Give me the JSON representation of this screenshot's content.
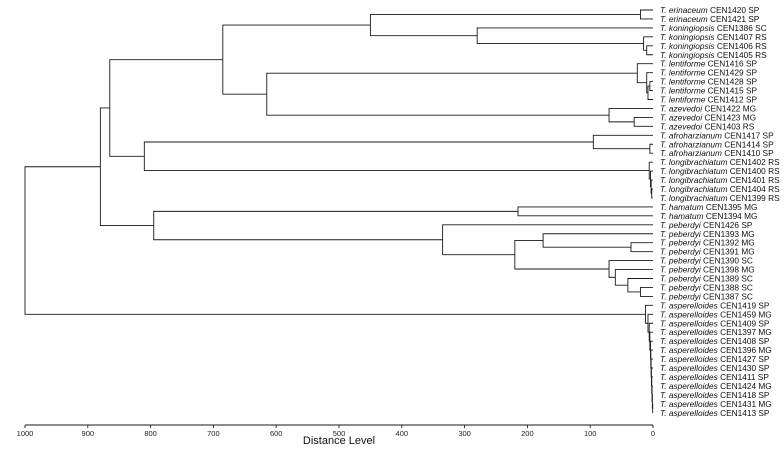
{
  "chart_data": {
    "type": "dendrogram",
    "xlabel": "Distance Level",
    "xlim": [
      1000,
      0
    ],
    "x_ticks": [
      1000,
      900,
      800,
      700,
      600,
      500,
      400,
      300,
      200,
      100,
      0
    ],
    "leaves": [
      {
        "species": "T. erinaceum",
        "code": "CEN1420 SP"
      },
      {
        "species": "T. erinaceum",
        "code": "CEN1421 SP"
      },
      {
        "species": "T. koningiopsis",
        "code": "CEN1386 SC"
      },
      {
        "species": "T. koningiopsis",
        "code": "CEN1407 RS"
      },
      {
        "species": "T. koningiopsis",
        "code": "CEN1406 RS"
      },
      {
        "species": "T. koningiopsis",
        "code": "CEN1405 RS"
      },
      {
        "species": "T. lentiforme",
        "code": "CEN1416 SP"
      },
      {
        "species": "T. lentiforme",
        "code": "CEN1429 SP"
      },
      {
        "species": "T. lentiforme",
        "code": "CEN1428 SP"
      },
      {
        "species": "T. lentiforme",
        "code": "CEN1415 SP"
      },
      {
        "species": "T. lentiforme",
        "code": "CEN1412 SP"
      },
      {
        "species": "T. azevedoi",
        "code": "CEN1422 MG"
      },
      {
        "species": "T. azevedoi",
        "code": "CEN1423 MG"
      },
      {
        "species": "T. azevedoi",
        "code": "CEN1403 RS"
      },
      {
        "species": "T. afroharzianum",
        "code": "CEN1417 SP"
      },
      {
        "species": "T. afroharzianum",
        "code": "CEN1414 SP"
      },
      {
        "species": "T. afroharzianum",
        "code": "CEN1410 SP"
      },
      {
        "species": "T. longibrachiatum",
        "code": "CEN1402 RS"
      },
      {
        "species": "T. longibrachiatum",
        "code": "CEN1400 RS"
      },
      {
        "species": "T. longibrachiatum",
        "code": "CEN1401 RS"
      },
      {
        "species": "T. longibrachiatum",
        "code": "CEN1404 RS"
      },
      {
        "species": "T. longibrachiatum",
        "code": "CEN1399 RS"
      },
      {
        "species": "T. hamatum",
        "code": "CEN1395 MG"
      },
      {
        "species": "T. hamatum",
        "code": "CEN1394 MG"
      },
      {
        "species": "T. peberdyi",
        "code": "CEN1426 SP"
      },
      {
        "species": "T. peberdyi",
        "code": "CEN1393 MG"
      },
      {
        "species": "T. peberdyi",
        "code": "CEN1392 MG"
      },
      {
        "species": "T. peberdyi",
        "code": "CEN1391 MG"
      },
      {
        "species": "T. peberdyi",
        "code": "CEN1390 SC"
      },
      {
        "species": "T. peberdyi",
        "code": "CEN1398 MG"
      },
      {
        "species": "T. peberdyi",
        "code": "CEN1389 SC"
      },
      {
        "species": "T. peberdyi",
        "code": "CEN1388 SC"
      },
      {
        "species": "T. peberdyi",
        "code": "CEN1387 SC"
      },
      {
        "species": "T. asperelloides",
        "code": "CEN1419 SP"
      },
      {
        "species": "T. asperelloides",
        "code": "CEN1459 MG"
      },
      {
        "species": "T. asperelloides",
        "code": "CEN1409 SP"
      },
      {
        "species": "T. asperelloides",
        "code": "CEN1397 MG"
      },
      {
        "species": "T. asperelloides",
        "code": "CEN1408 SP"
      },
      {
        "species": "T. asperelloides",
        "code": "CEN1396 MG"
      },
      {
        "species": "T. asperelloides",
        "code": "CEN1427 SP"
      },
      {
        "species": "T. asperelloides",
        "code": "CEN1430 SP"
      },
      {
        "species": "T. asperelloides",
        "code": "CEN1411 SP"
      },
      {
        "species": "T. asperelloides",
        "code": "CEN1424 MG"
      },
      {
        "species": "T. asperelloides",
        "code": "CEN1418 SP"
      },
      {
        "species": "T. asperelloides",
        "code": "CEN1431 MG"
      },
      {
        "species": "T. asperelloides",
        "code": "CEN1413 SP"
      }
    ],
    "merges": [
      {
        "a": "L0",
        "b": "L1",
        "height": 20
      },
      {
        "a": "L4",
        "b": "L5",
        "height": 10
      },
      {
        "a": "L3",
        "b": "N1",
        "height": 15
      },
      {
        "a": "L2",
        "b": "N2",
        "height": 280
      },
      {
        "a": "N0",
        "b": "N3",
        "height": 450
      },
      {
        "a": "L8",
        "b": "L9",
        "height": 5
      },
      {
        "a": "N5",
        "b": "L10",
        "height": 8
      },
      {
        "a": "L7",
        "b": "N6",
        "height": 10
      },
      {
        "a": "L6",
        "b": "N7",
        "height": 25
      },
      {
        "a": "L12",
        "b": "L13",
        "height": 30
      },
      {
        "a": "L11",
        "b": "N9",
        "height": 70
      },
      {
        "a": "N8",
        "b": "N10",
        "height": 615
      },
      {
        "a": "N4",
        "b": "N11",
        "height": 685
      },
      {
        "a": "L15",
        "b": "L16",
        "height": 5
      },
      {
        "a": "L14",
        "b": "N13",
        "height": 95
      },
      {
        "a": "L20",
        "b": "L21",
        "height": 2
      },
      {
        "a": "L19",
        "b": "N15",
        "height": 3
      },
      {
        "a": "L18",
        "b": "N16",
        "height": 4
      },
      {
        "a": "L17",
        "b": "N17",
        "height": 6
      },
      {
        "a": "N14",
        "b": "N18",
        "height": 810
      },
      {
        "a": "N12",
        "b": "N19",
        "height": 865
      },
      {
        "a": "L22",
        "b": "L23",
        "height": 215
      },
      {
        "a": "L26",
        "b": "L27",
        "height": 35
      },
      {
        "a": "L25",
        "b": "N22",
        "height": 175
      },
      {
        "a": "L31",
        "b": "L32",
        "height": 20
      },
      {
        "a": "L30",
        "b": "N24",
        "height": 40
      },
      {
        "a": "L29",
        "b": "N25",
        "height": 60
      },
      {
        "a": "L28",
        "b": "N26",
        "height": 70
      },
      {
        "a": "N23",
        "b": "N27",
        "height": 220
      },
      {
        "a": "L24",
        "b": "N28",
        "height": 335
      },
      {
        "a": "N21",
        "b": "N29",
        "height": 795
      },
      {
        "a": "N20",
        "b": "N30",
        "height": 880
      },
      {
        "a": "L44",
        "b": "L45",
        "height": 0.5
      },
      {
        "a": "L43",
        "b": "N32",
        "height": 1
      },
      {
        "a": "L42",
        "b": "N33",
        "height": 1.5
      },
      {
        "a": "L41",
        "b": "N34",
        "height": 2
      },
      {
        "a": "L40",
        "b": "N35",
        "height": 2.5
      },
      {
        "a": "L39",
        "b": "N36",
        "height": 3
      },
      {
        "a": "L38",
        "b": "N37",
        "height": 3.5
      },
      {
        "a": "L37",
        "b": "N38",
        "height": 4
      },
      {
        "a": "L36",
        "b": "N39",
        "height": 5
      },
      {
        "a": "L35",
        "b": "N40",
        "height": 6
      },
      {
        "a": "L34",
        "b": "N41",
        "height": 8
      },
      {
        "a": "L33",
        "b": "N42",
        "height": 12
      },
      {
        "a": "N31",
        "b": "N43",
        "height": 1000
      }
    ]
  }
}
